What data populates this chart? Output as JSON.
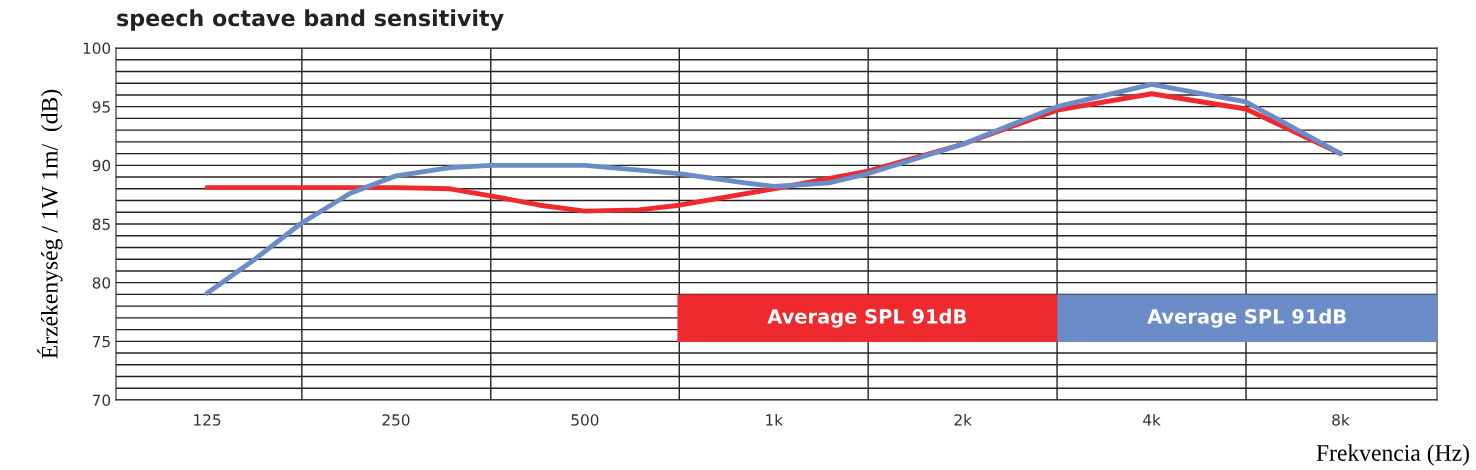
{
  "chart_data": {
    "type": "line",
    "title": "speech octave band sensitivity",
    "xlabel": "Frekvencia (Hz)",
    "ylabel": "Érzékenység / 1W 1m/  (dB)",
    "log": "x",
    "xlim": [
      89.5,
      11400
    ],
    "ylim": [
      70,
      100
    ],
    "xticks": [
      125,
      {
        "value": 177,
        "label": null
      },
      250,
      {
        "value": 354,
        "label": null
      },
      500,
      {
        "value": 707,
        "label": null
      },
      {
        "value": 1000,
        "label": "1k"
      },
      {
        "value": 1414,
        "label": null
      },
      {
        "value": 2000,
        "label": "2k"
      },
      {
        "value": 2828,
        "label": null
      },
      {
        "value": 4000,
        "label": "4k"
      },
      {
        "value": 5657,
        "label": null
      },
      {
        "value": 8000,
        "label": "8k"
      }
    ],
    "yticks": [
      70,
      {
        "value": 71,
        "label": null
      },
      {
        "value": 72,
        "label": null
      },
      {
        "value": 73,
        "label": null
      },
      {
        "value": 74,
        "label": null
      },
      75,
      {
        "value": 76,
        "label": null
      },
      {
        "value": 77,
        "label": null
      },
      {
        "value": 78,
        "label": null
      },
      {
        "value": 79,
        "label": null
      },
      80,
      {
        "value": 81,
        "label": null
      },
      {
        "value": 82,
        "label": null
      },
      {
        "value": 83,
        "label": null
      },
      {
        "value": 84,
        "label": null
      },
      85,
      {
        "value": 86,
        "label": null
      },
      {
        "value": 87,
        "label": null
      },
      {
        "value": 88,
        "label": null
      },
      {
        "value": 89,
        "label": null
      },
      90,
      {
        "value": 91,
        "label": null
      },
      {
        "value": 92,
        "label": null
      },
      {
        "value": 93,
        "label": null
      },
      {
        "value": 94,
        "label": null
      },
      95,
      {
        "value": 96,
        "label": null
      },
      {
        "value": 97,
        "label": null
      },
      {
        "value": 98,
        "label": null
      },
      {
        "value": 99,
        "label": null
      },
      100
    ],
    "grid": true,
    "legend": "bottom right",
    "marker": "none",
    "line_style": "solid",
    "series": [
      {
        "name": "Average SPL 91dB",
        "color": "#ee2a2f",
        "x": [
          125,
          176,
          250,
          305,
          354,
          424,
          500,
          610,
          707,
          1000,
          1414,
          2000,
          2828,
          4000,
          5657,
          8000
        ],
        "values": [
          88.1,
          88.1,
          88.1,
          88.0,
          87.4,
          86.6,
          86.1,
          86.2,
          86.6,
          88.0,
          89.5,
          91.8,
          94.7,
          96.1,
          94.8,
          91.0
        ]
      },
      {
        "name": "Average SPL 91dB",
        "color": "#6b8cc7",
        "x": [
          125,
          149,
          176,
          211,
          250,
          305,
          354,
          500,
          707,
          900,
          1000,
          1224,
          1414,
          2000,
          2828,
          4000,
          5657,
          8000
        ],
        "values": [
          79.1,
          82.0,
          85.0,
          87.6,
          89.1,
          89.8,
          90.0,
          90.0,
          89.3,
          88.5,
          88.2,
          88.5,
          89.3,
          91.8,
          95.0,
          96.9,
          95.4,
          91.0
        ]
      }
    ]
  }
}
